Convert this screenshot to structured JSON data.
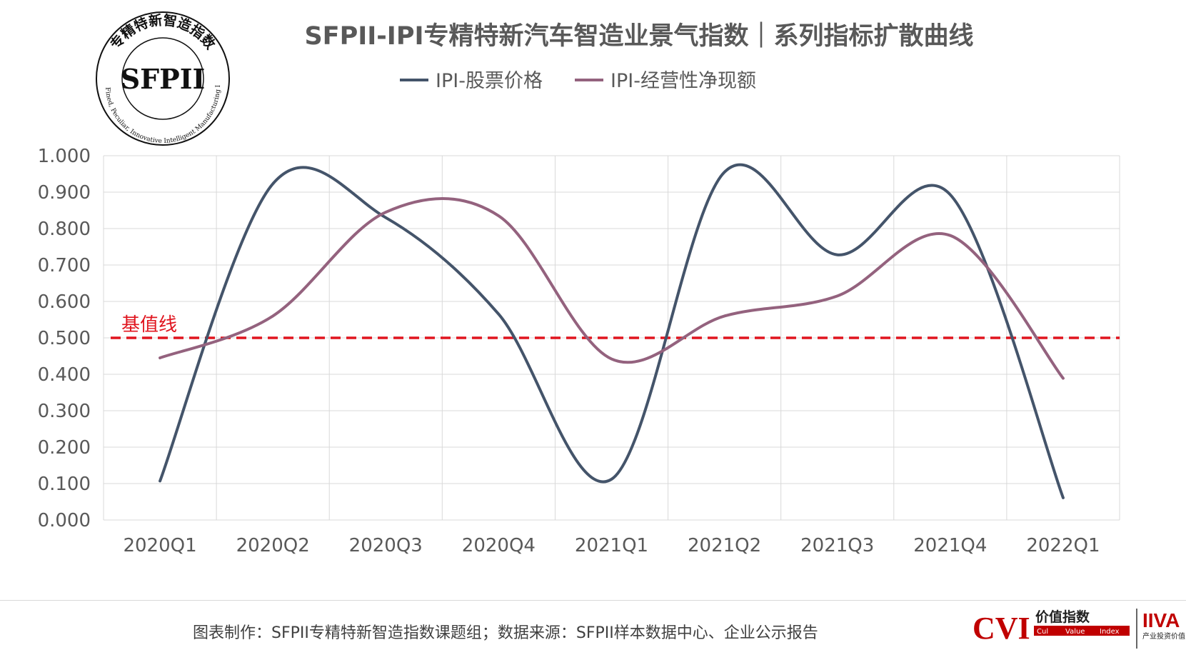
{
  "chart_data": {
    "type": "line",
    "title": "SFPII-IPI专精特新汽车智造业景气指数｜系列指标扩散曲线",
    "categories": [
      "2020Q1",
      "2020Q2",
      "2020Q3",
      "2020Q4",
      "2021Q1",
      "2021Q2",
      "2021Q3",
      "2021Q4",
      "2022Q1"
    ],
    "series": [
      {
        "name": "IPI-股票价格",
        "color": "#44546A",
        "values": [
          0.107,
          0.923,
          0.83,
          0.565,
          0.112,
          0.955,
          0.728,
          0.893,
          0.061
        ]
      },
      {
        "name": "IPI-经营性净现额",
        "color": "#94627E",
        "values": [
          0.445,
          0.56,
          0.845,
          0.835,
          0.442,
          0.56,
          0.615,
          0.781,
          0.389
        ]
      }
    ],
    "ylim": [
      0,
      1
    ],
    "yticks": [
      "0.000",
      "0.100",
      "0.200",
      "0.300",
      "0.400",
      "0.500",
      "0.600",
      "0.700",
      "0.800",
      "0.900",
      "1.000"
    ],
    "grid": true,
    "legend_position": "top",
    "reference_line": {
      "value": 0.5,
      "label": "基值线",
      "color": "#E0141E"
    }
  },
  "seal": {
    "center_text": "SFPII",
    "arc_cn": "专精特新智造指数",
    "arc_en": "Specialized, Fined, Peculiar, Innovative Intelligent Manufacturing Index(SFPII)"
  },
  "footer": {
    "caption": "图表制作：SFPII专精特新智造指数课题组；数据来源：SFPII样本数据中心、企业公示报告",
    "logo_cvi": "CVI",
    "logo_cvi_cn": "价值指数",
    "logo_cvi_sub": [
      "Cul",
      "Value",
      "Index"
    ],
    "logo_iiva": "IIVA",
    "logo_iiva_cn": "产业投资价值分析网"
  }
}
